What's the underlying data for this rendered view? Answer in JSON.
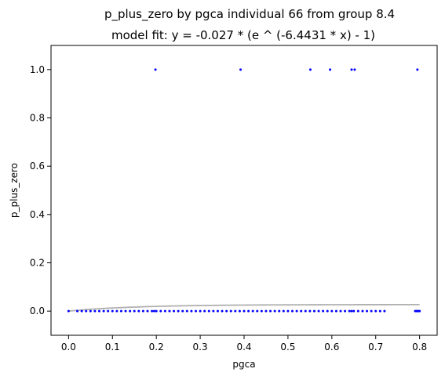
{
  "chart_data": {
    "type": "scatter",
    "title": "p_plus_zero by pgca individual 66 from group 8.4",
    "subtitle": "model fit: y = -0.027 * (e ^ (-6.4431 * x) - 1)",
    "xlabel": "pgca",
    "ylabel": "p_plus_zero",
    "xlim": [
      -0.04,
      0.84
    ],
    "ylim": [
      -0.1,
      1.1
    ],
    "xticks": [
      "0.0",
      "0.1",
      "0.2",
      "0.3",
      "0.4",
      "0.5",
      "0.6",
      "0.7",
      "0.8"
    ],
    "yticks": [
      "0.0",
      "0.2",
      "0.4",
      "0.6",
      "0.8",
      "1.0"
    ],
    "grid": false,
    "colors": {
      "points": "#0000ff",
      "fit": "#b0b0b0"
    },
    "points_one": [
      0.198,
      0.392,
      0.551,
      0.596,
      0.645,
      0.652,
      0.795
    ],
    "points_zero": [
      0.0,
      0.02,
      0.03,
      0.04,
      0.05,
      0.06,
      0.07,
      0.08,
      0.09,
      0.1,
      0.11,
      0.12,
      0.13,
      0.14,
      0.15,
      0.16,
      0.17,
      0.18,
      0.19,
      0.195,
      0.2,
      0.21,
      0.22,
      0.23,
      0.24,
      0.25,
      0.26,
      0.27,
      0.28,
      0.29,
      0.3,
      0.31,
      0.32,
      0.33,
      0.34,
      0.35,
      0.36,
      0.37,
      0.38,
      0.39,
      0.4,
      0.41,
      0.42,
      0.43,
      0.44,
      0.45,
      0.46,
      0.47,
      0.48,
      0.49,
      0.5,
      0.51,
      0.52,
      0.53,
      0.54,
      0.55,
      0.56,
      0.57,
      0.58,
      0.59,
      0.6,
      0.61,
      0.62,
      0.63,
      0.64,
      0.645,
      0.65,
      0.66,
      0.67,
      0.68,
      0.69,
      0.7,
      0.71,
      0.72,
      0.79,
      0.792,
      0.794,
      0.796,
      0.798,
      0.8
    ],
    "fit": {
      "a": 0.027,
      "b": -6.4431,
      "x_range": [
        0.0,
        0.8
      ]
    }
  }
}
